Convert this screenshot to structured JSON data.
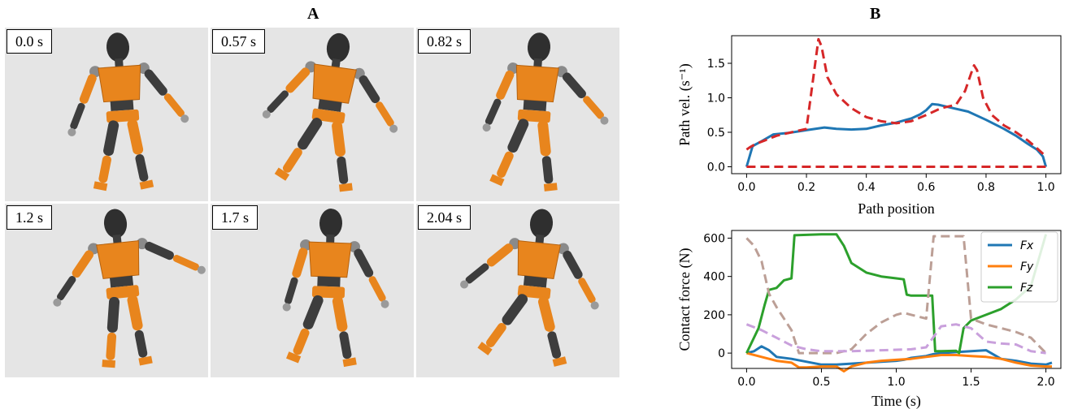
{
  "panel_a_label": "A",
  "panel_b_label": "B",
  "frames": [
    {
      "time_label": "0.0 s"
    },
    {
      "time_label": "0.57 s"
    },
    {
      "time_label": "0.82 s"
    },
    {
      "time_label": "1.2 s"
    },
    {
      "time_label": "1.7 s"
    },
    {
      "time_label": "2.04 s"
    }
  ],
  "colors": {
    "orange": "#e8851d",
    "dark": "#3d3d3d",
    "blue": "#1f77b4",
    "red": "#d62728",
    "green": "#2ca02c",
    "bg": "#e5e5e5"
  },
  "chart_data": [
    {
      "type": "line",
      "ylabel": "Path vel. (s⁻¹)",
      "xlabel": "Path position",
      "xlim": [
        -0.05,
        1.05
      ],
      "ylim": [
        -0.1,
        1.9
      ],
      "xticks": [
        "0.0",
        "0.2",
        "0.4",
        "0.6",
        "0.8",
        "1.0"
      ],
      "yticks": [
        "0.0",
        "0.5",
        "1.0",
        "1.5"
      ],
      "grid": false,
      "series": [
        {
          "color": "#1f77b4",
          "style": "solid",
          "x": [
            0,
            0.02,
            0.05,
            0.09,
            0.14,
            0.2,
            0.26,
            0.3,
            0.35,
            0.4,
            0.45,
            0.5,
            0.55,
            0.58,
            0.6,
            0.62,
            0.64,
            0.68,
            0.74,
            0.8,
            0.86,
            0.9,
            0.94,
            0.97,
            0.99,
            1.0
          ],
          "y": [
            0,
            0.3,
            0.37,
            0.47,
            0.49,
            0.53,
            0.57,
            0.55,
            0.54,
            0.55,
            0.6,
            0.64,
            0.7,
            0.76,
            0.82,
            0.91,
            0.9,
            0.86,
            0.8,
            0.68,
            0.55,
            0.45,
            0.33,
            0.25,
            0.15,
            0
          ]
        },
        {
          "color": "#d62728",
          "style": "dashed",
          "x": [
            0,
            0.01,
            0.03,
            0.06,
            0.1,
            0.15,
            0.2,
            0.22,
            0.24,
            0.25,
            0.27,
            0.3,
            0.35,
            0.4,
            0.45,
            0.5,
            0.55,
            0.6,
            0.65,
            0.7,
            0.73,
            0.75,
            0.76,
            0.77,
            0.79,
            0.82,
            0.86,
            0.9,
            0.94,
            0.97,
            1.0
          ],
          "y": [
            0.25,
            0.28,
            0.33,
            0.38,
            0.45,
            0.5,
            0.55,
            1.2,
            1.85,
            1.75,
            1.3,
            1.05,
            0.85,
            0.72,
            0.66,
            0.63,
            0.66,
            0.75,
            0.85,
            0.9,
            1.1,
            1.35,
            1.47,
            1.4,
            1.0,
            0.75,
            0.6,
            0.5,
            0.38,
            0.27,
            0.15
          ]
        },
        {
          "color": "#d62728",
          "style": "dashed",
          "x": [
            0,
            1.0
          ],
          "y": [
            0,
            0
          ]
        }
      ]
    },
    {
      "type": "line",
      "ylabel": "Contact force (N)",
      "xlabel": "Time (s)",
      "xlim": [
        -0.1,
        2.1
      ],
      "ylim": [
        -80,
        640
      ],
      "xticks": [
        "0.0",
        "0.5",
        "1.0",
        "1.5",
        "2.0"
      ],
      "yticks": [
        "0",
        "200",
        "400",
        "600"
      ],
      "legend_position": "top-right",
      "grid": false,
      "series": [
        {
          "name": "F_x",
          "legend": "Fx",
          "color": "#1f77b4",
          "style": "solid",
          "x": [
            0,
            0.05,
            0.1,
            0.15,
            0.2,
            0.3,
            0.5,
            0.6,
            0.7,
            0.9,
            1.0,
            1.05,
            1.1,
            1.2,
            1.25,
            1.3,
            1.4,
            1.5,
            1.6,
            1.7,
            1.8,
            1.9,
            2.0,
            2.04
          ],
          "y": [
            0,
            10,
            35,
            15,
            -20,
            -30,
            -60,
            -60,
            -55,
            -45,
            -40,
            -35,
            -25,
            -15,
            -5,
            0,
            5,
            10,
            15,
            -30,
            -40,
            -55,
            -60,
            -50
          ]
        },
        {
          "name": "F_y",
          "legend": "Fy",
          "color": "#ff7f0e",
          "style": "solid",
          "x": [
            0,
            0.1,
            0.2,
            0.3,
            0.35,
            0.4,
            0.5,
            0.6,
            0.65,
            0.7,
            0.8,
            0.9,
            1.0,
            1.1,
            1.2,
            1.3,
            1.4,
            1.5,
            1.6,
            1.7,
            1.8,
            1.9,
            2.0,
            2.04
          ],
          "y": [
            0,
            -20,
            -40,
            -50,
            -75,
            -75,
            -70,
            -70,
            -95,
            -70,
            -50,
            -40,
            -35,
            -30,
            -20,
            -10,
            -10,
            -15,
            -20,
            -30,
            -50,
            -65,
            -70,
            -70
          ]
        },
        {
          "name": "F_z",
          "legend": "Fz",
          "color": "#2ca02c",
          "style": "solid",
          "x": [
            0,
            0.08,
            0.12,
            0.15,
            0.2,
            0.25,
            0.3,
            0.32,
            0.5,
            0.6,
            0.65,
            0.7,
            0.8,
            0.9,
            1.0,
            1.05,
            1.07,
            1.1,
            1.2,
            1.22,
            1.24,
            1.26,
            1.3,
            1.4,
            1.42,
            1.45,
            1.5,
            1.6,
            1.7,
            1.8,
            1.9,
            2.0
          ],
          "y": [
            0,
            130,
            250,
            330,
            340,
            380,
            390,
            615,
            620,
            620,
            560,
            470,
            420,
            400,
            390,
            385,
            305,
            300,
            300,
            300,
            300,
            10,
            10,
            12,
            0,
            130,
            170,
            200,
            230,
            280,
            350,
            620
          ]
        },
        {
          "color": "#bc9f96",
          "style": "dashed",
          "x": [
            0,
            0.05,
            0.1,
            0.15,
            0.2,
            0.25,
            0.3,
            0.35,
            0.5,
            0.6,
            0.7,
            0.8,
            0.9,
            1.0,
            1.05,
            1.1,
            1.2,
            1.25,
            1.3,
            1.4,
            1.45,
            1.5,
            1.6,
            1.7,
            1.8,
            1.9,
            2.0
          ],
          "y": [
            600,
            560,
            480,
            310,
            240,
            180,
            120,
            0,
            0,
            0,
            20,
            100,
            160,
            200,
            210,
            200,
            180,
            610,
            610,
            610,
            610,
            180,
            150,
            130,
            110,
            80,
            0
          ]
        },
        {
          "color": "#c9a0dc",
          "style": "dashed",
          "x": [
            0,
            0.1,
            0.2,
            0.3,
            0.4,
            0.5,
            0.7,
            0.9,
            1.1,
            1.2,
            1.3,
            1.4,
            1.5,
            1.6,
            1.7,
            1.8,
            1.9,
            2.0
          ],
          "y": [
            150,
            120,
            80,
            40,
            20,
            10,
            10,
            15,
            20,
            30,
            140,
            150,
            130,
            60,
            50,
            45,
            10,
            0
          ]
        }
      ]
    }
  ]
}
